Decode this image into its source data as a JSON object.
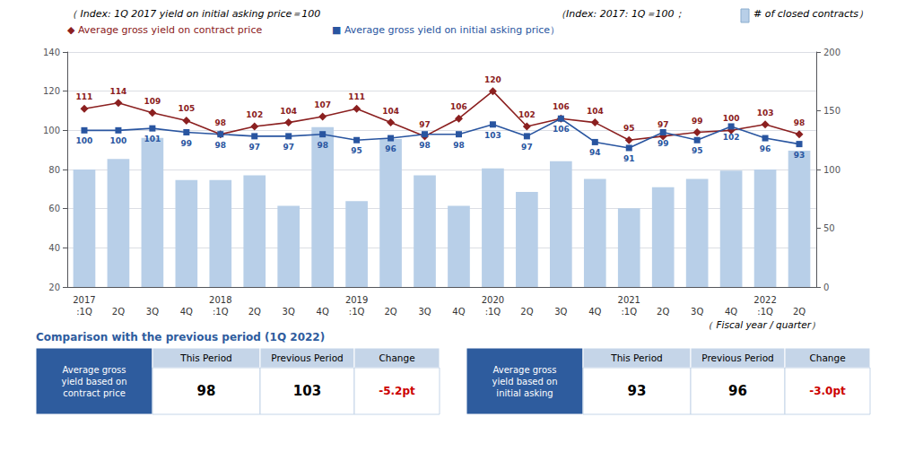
{
  "chart_data": {
    "type": "line",
    "categories": [
      ":1Q",
      "2Q",
      "3Q",
      "4Q",
      ":1Q",
      "2Q",
      "3Q",
      "4Q",
      ":1Q",
      "2Q",
      "3Q",
      "4Q",
      ":1Q",
      "2Q",
      "3Q",
      "4Q",
      ":1Q",
      "2Q",
      "3Q",
      "4Q",
      ":1Q",
      "2Q"
    ],
    "year_labels": [
      "2017",
      null,
      null,
      null,
      "2018",
      null,
      null,
      null,
      "2019",
      null,
      null,
      null,
      "2020",
      null,
      null,
      null,
      "2021",
      null,
      null,
      null,
      "2022",
      null
    ],
    "xlabel": "（ Fiscal year / quarter）",
    "annotations": [
      "（ Index: 1Q 2017 yield on initial asking price＝100",
      "（Index: 2017: 1Q＝100；"
    ],
    "series": [
      {
        "name": "# of closed contracts）",
        "type": "bar",
        "axis": "y2",
        "color": "#b8cfe8",
        "values": [
          100,
          109,
          127,
          91,
          91,
          95,
          69,
          136,
          73,
          126,
          95,
          69,
          101,
          81,
          107,
          92,
          67,
          85,
          92,
          99,
          100,
          116
        ]
      },
      {
        "name": "◆ Average gross yield on contract price",
        "type": "line",
        "color": "#8b2020",
        "marker": "diamond",
        "data_labels": true,
        "values": [
          111,
          114,
          109,
          105,
          98,
          102,
          104,
          107,
          111,
          104,
          97,
          106,
          120,
          102,
          106,
          104,
          95,
          97,
          99,
          100,
          103,
          98
        ]
      },
      {
        "name": "■ Average gross yield on initial asking price）",
        "type": "line",
        "color": "#2955a0",
        "marker": "square",
        "data_labels": true,
        "values": [
          100,
          100,
          101,
          99,
          98,
          97,
          97,
          98,
          95,
          96,
          98,
          98,
          103,
          97,
          106,
          94,
          91,
          99,
          95,
          102,
          96,
          93
        ]
      }
    ],
    "ylim": [
      20,
      140
    ],
    "yticks": [
      20,
      40,
      60,
      80,
      100,
      120,
      140
    ],
    "y2lim": [
      0,
      200
    ],
    "y2ticks": [
      0,
      50,
      100,
      150,
      200
    ],
    "grid": true,
    "table": {
      "title": "Comparison with the previous period (1Q 2022)",
      "color": "#2e5c9e",
      "header_color": "#c5d5e8",
      "negative_color": "#cc0000",
      "panels": [
        {
          "label": "Average gross\nyield based on\ncontract price",
          "header": [
            "This Period",
            "Previous Period",
            "Change"
          ],
          "cells": [
            98,
            103,
            {
              "value": -5.2,
              "label": "-5.2pt"
            }
          ]
        },
        {
          "label": "Average gross\nyield based on\ninitial asking",
          "header": [
            "This Period",
            "Previous Period",
            "Change"
          ],
          "cells": [
            93,
            96,
            {
              "value": -3.0,
              "label": "-3.0pt"
            }
          ]
        }
      ]
    }
  }
}
